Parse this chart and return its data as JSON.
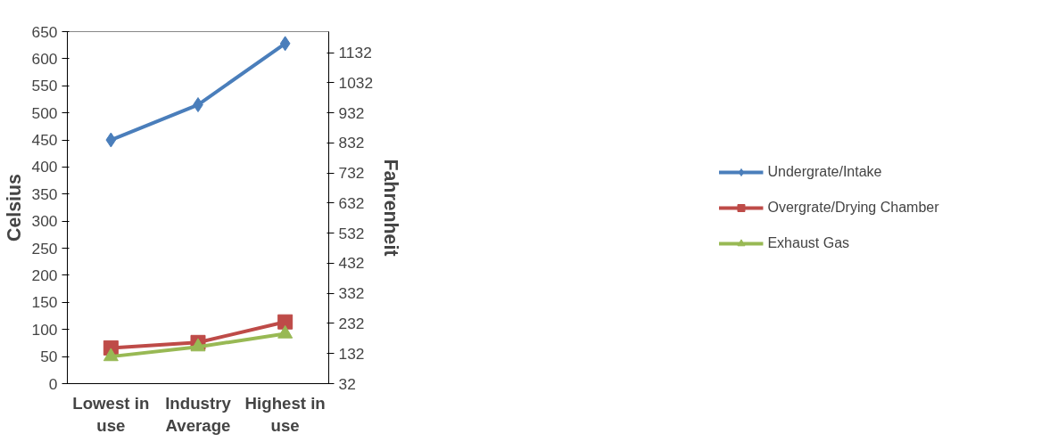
{
  "chart_data": {
    "type": "line",
    "categories": [
      "Lowest in use",
      "Industry Average",
      "Highest in use"
    ],
    "ylabel": "Celsius",
    "y2label": "Fahrenheit",
    "ylim": [
      0,
      650
    ],
    "yticks": [
      0,
      50,
      100,
      150,
      200,
      250,
      300,
      350,
      400,
      450,
      500,
      550,
      600,
      650
    ],
    "y2lim": [
      32,
      1202
    ],
    "y2ticks": [
      32,
      132,
      232,
      332,
      432,
      532,
      632,
      732,
      832,
      932,
      1032,
      1132
    ],
    "series": [
      {
        "name": "Undergrate/Intake",
        "color": "#4a7ebb",
        "marker": "diamond",
        "values": [
          450,
          515,
          628
        ]
      },
      {
        "name": "Overgrate/Drying Chamber",
        "color": "#be4b48",
        "marker": "square",
        "values": [
          66,
          76,
          114
        ]
      },
      {
        "name": "Exhaust Gas",
        "color": "#98b954",
        "marker": "triangle",
        "values": [
          50,
          68,
          92
        ]
      }
    ],
    "grid": false,
    "legend": "right"
  }
}
